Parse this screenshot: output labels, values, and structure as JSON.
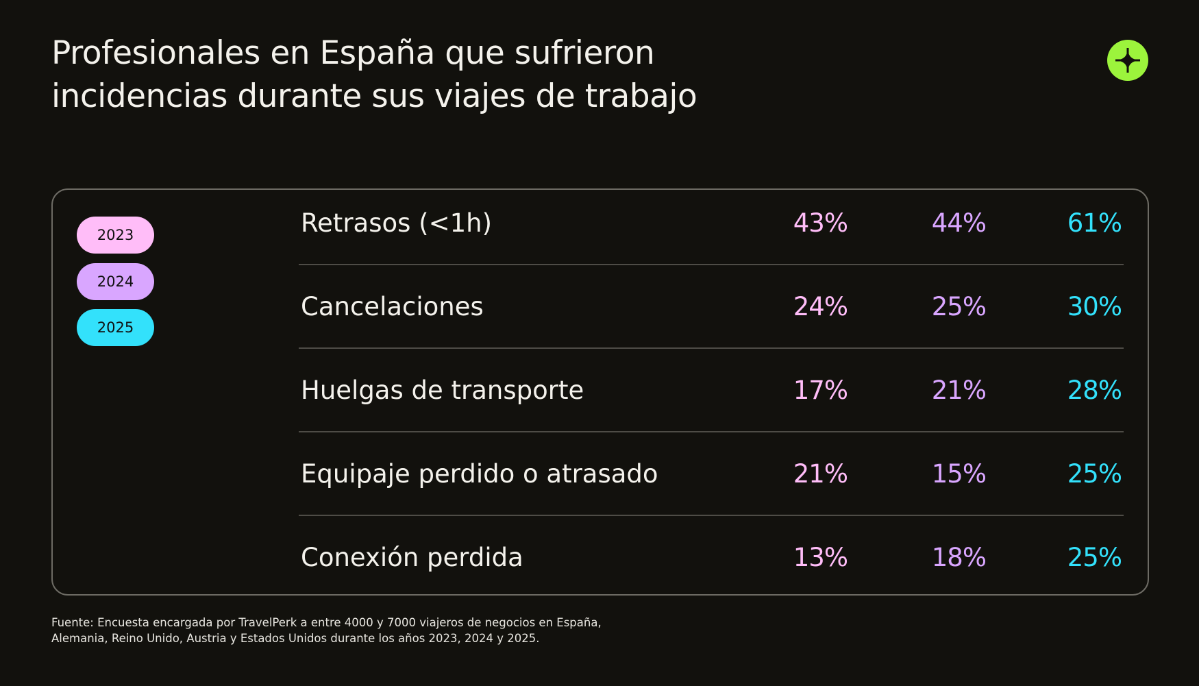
{
  "title_lines": [
    "Profesionales en España que sufrieron",
    "incidencias durante sus viajes de trabajo"
  ],
  "logo_icon": "plus-icon",
  "colors": {
    "background": "#12110d",
    "y2023": "#ffbdf8",
    "y2024": "#d9a6ff",
    "y2025": "#33e1fb",
    "logo": "#9cf43c"
  },
  "legend": [
    {
      "year": "2023",
      "color": "#ffbdf8"
    },
    {
      "year": "2024",
      "color": "#d9a6ff"
    },
    {
      "year": "2025",
      "color": "#33e1fb"
    }
  ],
  "rows": [
    {
      "label": "Retrasos (<1h)",
      "values": [
        "43%",
        "44%",
        "61%"
      ]
    },
    {
      "label": "Cancelaciones",
      "values": [
        "24%",
        "25%",
        "30%"
      ]
    },
    {
      "label": "Huelgas de transporte",
      "values": [
        "17%",
        "21%",
        "28%"
      ]
    },
    {
      "label": "Equipaje perdido o atrasado",
      "values": [
        "21%",
        "15%",
        "25%"
      ]
    },
    {
      "label": "Conexión perdida",
      "values": [
        "13%",
        "18%",
        "25%"
      ]
    }
  ],
  "footer_lines": [
    "Fuente: Encuesta encargada por TravelPerk a entre 4000 y 7000 viajeros de negocios en España,",
    "Alemania, Reino Unido, Austria y Estados Unidos durante los años 2023, 2024 y 2025."
  ]
}
